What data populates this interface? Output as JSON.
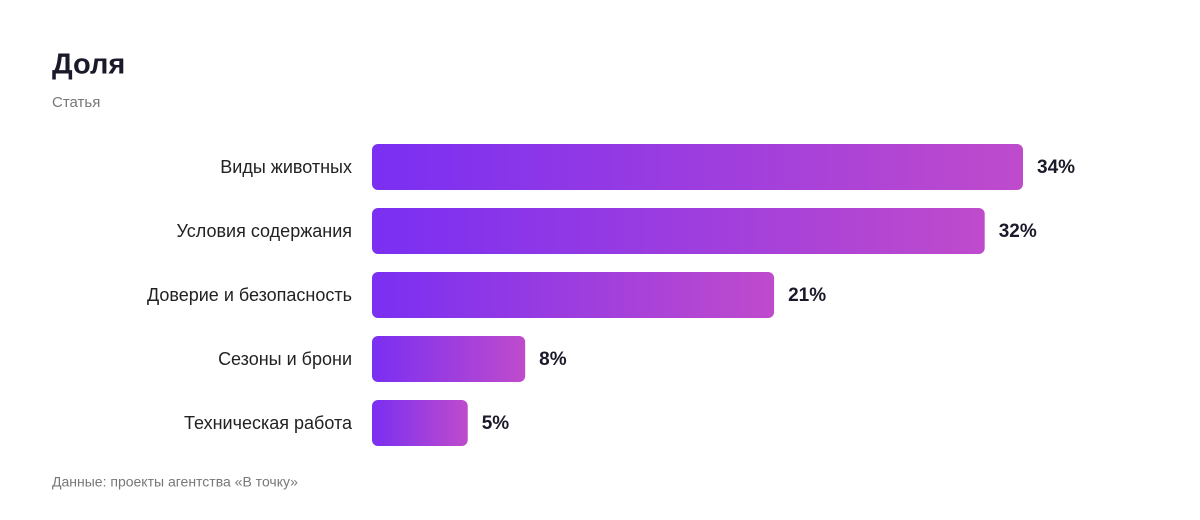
{
  "chart_data": {
    "type": "bar",
    "orientation": "horizontal",
    "title": "Доля",
    "subtitle": "Статья",
    "categories": [
      "Виды животных",
      "Условия содержания",
      "Доверие и безопасность",
      "Сезоны и брони",
      "Техническая работа"
    ],
    "values": [
      34,
      32,
      21,
      8,
      5
    ],
    "value_labels": [
      "34%",
      "32%",
      "21%",
      "8%",
      "5%"
    ],
    "gradient": [
      "#7a2ff2",
      "#bf4bcc"
    ],
    "source": "Данные: проекты агентства «В точку»"
  }
}
